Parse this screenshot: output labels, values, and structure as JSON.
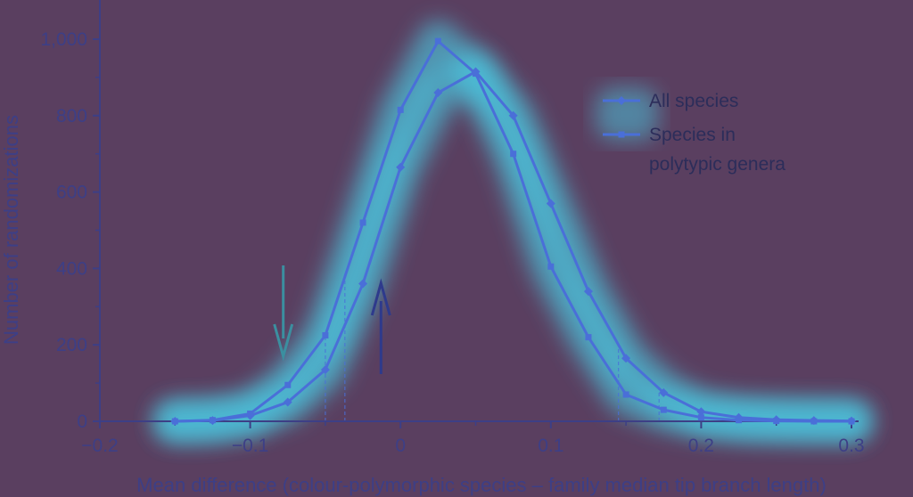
{
  "chart_data": {
    "type": "line",
    "xlabel": "Mean difference (colour-polymorphic species – family median tip branch length)",
    "ylabel": "Number of randomizations",
    "xlim": [
      -0.2,
      0.3
    ],
    "ylim": [
      0,
      1000
    ],
    "x_ticks": [
      -0.2,
      -0.1,
      0,
      0.1,
      0.2,
      0.3
    ],
    "x_tick_labels": [
      "−0.2",
      "−0.1",
      "0",
      "0.1",
      "0.2",
      "0.3"
    ],
    "y_ticks": [
      0,
      200,
      400,
      600,
      800,
      1000
    ],
    "y_tick_labels": [
      "0",
      "200",
      "400",
      "600",
      "800",
      "1,000"
    ],
    "x": [
      -0.15,
      -0.125,
      -0.1,
      -0.075,
      -0.05,
      -0.025,
      0,
      0.025,
      0.05,
      0.075,
      0.1,
      0.125,
      0.15,
      0.175,
      0.2,
      0.225,
      0.25,
      0.275,
      0.3
    ],
    "series": [
      {
        "name": "All species",
        "marker": "diamond",
        "color": "#4a6fd8",
        "values": [
          0,
          2,
          15,
          50,
          135,
          360,
          665,
          860,
          915,
          800,
          570,
          340,
          165,
          75,
          25,
          10,
          4,
          2,
          1
        ]
      },
      {
        "name": "Species in polytypic genera",
        "legend_lines": [
          "Species in",
          "polytypic genera"
        ],
        "marker": "square",
        "color": "#4a6fd8",
        "values": [
          0,
          3,
          20,
          95,
          225,
          520,
          815,
          995,
          910,
          700,
          405,
          220,
          70,
          30,
          10,
          3,
          1,
          0,
          0
        ]
      }
    ],
    "reference_lines_x": [
      -0.05,
      -0.037,
      0.145,
      0.172
    ],
    "arrows": [
      {
        "x": -0.078,
        "direction": "down",
        "color": "#3b8fa0"
      },
      {
        "x": -0.013,
        "direction": "up",
        "color": "#2e3a8c"
      }
    ],
    "legend_position": "upper-right",
    "grid": false
  },
  "colors": {
    "background": "#5a3f60",
    "axis": "#3d3f86",
    "line": "#4a6fd8",
    "glow": "#4ad8f0"
  }
}
